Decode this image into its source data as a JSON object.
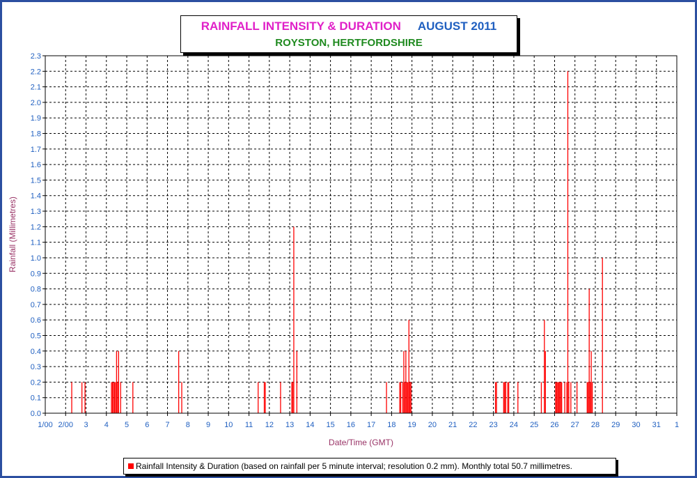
{
  "header": {
    "title_main": "RAINFALL INTENSITY & DURATION",
    "title_period": "AUGUST 2011",
    "subtitle": "ROYSTON, HERTFORDSHIRE"
  },
  "legend": {
    "label": "Rainfall Intensity & Duration (based on rainfall per 5 minute interval; resolution 0.2 mm). Monthly total 50.7 millimetres."
  },
  "colors": {
    "bar": "#ff0000",
    "axis_text": "#1f5fc0",
    "axis_title": "#993366",
    "grid": "#000000"
  },
  "chart_data": {
    "type": "bar",
    "title": "RAINFALL INTENSITY & DURATION AUGUST 2011",
    "xlabel": "Date/Time (GMT)",
    "ylabel": "Rainfall (Millimetres)",
    "xlim": [
      0,
      31
    ],
    "ylim": [
      0,
      2.3
    ],
    "grid": true,
    "legend_position": "bottom",
    "x_tick_labels": [
      "1/00",
      "2/00",
      "3",
      "4",
      "5",
      "6",
      "7",
      "8",
      "9",
      "10",
      "11",
      "12",
      "13",
      "14",
      "15",
      "16",
      "17",
      "18",
      "19",
      "20",
      "21",
      "22",
      "23",
      "24",
      "25",
      "26",
      "27",
      "28",
      "29",
      "30",
      "31",
      "1"
    ],
    "y_tick_labels": [
      "0.0",
      "0.1",
      "0.2",
      "0.3",
      "0.4",
      "0.5",
      "0.6",
      "0.7",
      "0.8",
      "0.9",
      "1.0",
      "1.1",
      "1.2",
      "1.3",
      "1.4",
      "1.5",
      "1.6",
      "1.7",
      "1.8",
      "1.9",
      "2.0",
      "2.1",
      "2.2",
      "2.3"
    ],
    "series": [
      {
        "name": "Rainfall Intensity & Duration",
        "points": [
          [
            1.3,
            0.2
          ],
          [
            1.8,
            0.2
          ],
          [
            1.95,
            0.2
          ],
          [
            3.25,
            0.2
          ],
          [
            3.3,
            0.2
          ],
          [
            3.35,
            0.2
          ],
          [
            3.4,
            0.2
          ],
          [
            3.45,
            0.2
          ],
          [
            3.5,
            0.4
          ],
          [
            3.55,
            0.2
          ],
          [
            3.6,
            0.4
          ],
          [
            3.7,
            0.2
          ],
          [
            4.3,
            0.2
          ],
          [
            6.55,
            0.4
          ],
          [
            6.7,
            0.2
          ],
          [
            10.45,
            0.2
          ],
          [
            10.75,
            0.2
          ],
          [
            10.8,
            0.2
          ],
          [
            11.55,
            0.2
          ],
          [
            12.1,
            0.2
          ],
          [
            12.15,
            0.2
          ],
          [
            12.2,
            1.2
          ],
          [
            12.35,
            0.4
          ],
          [
            16.75,
            0.2
          ],
          [
            17.4,
            0.2
          ],
          [
            17.45,
            0.2
          ],
          [
            17.55,
            0.2
          ],
          [
            17.6,
            0.4
          ],
          [
            17.65,
            0.2
          ],
          [
            17.7,
            0.4
          ],
          [
            17.75,
            0.2
          ],
          [
            17.8,
            0.2
          ],
          [
            17.85,
            0.6
          ],
          [
            17.9,
            0.2
          ],
          [
            17.95,
            0.2
          ],
          [
            22.1,
            0.2
          ],
          [
            22.15,
            0.2
          ],
          [
            22.5,
            0.2
          ],
          [
            22.55,
            0.2
          ],
          [
            22.6,
            0.2
          ],
          [
            22.7,
            0.2
          ],
          [
            22.75,
            0.2
          ],
          [
            23.2,
            0.2
          ],
          [
            24.35,
            0.2
          ],
          [
            24.5,
            0.6
          ],
          [
            24.55,
            0.4
          ],
          [
            25.05,
            0.2
          ],
          [
            25.1,
            0.2
          ],
          [
            25.15,
            0.2
          ],
          [
            25.2,
            0.2
          ],
          [
            25.25,
            0.2
          ],
          [
            25.3,
            0.2
          ],
          [
            25.35,
            0.2
          ],
          [
            25.5,
            0.2
          ],
          [
            25.6,
            0.2
          ],
          [
            25.65,
            2.2
          ],
          [
            25.7,
            0.2
          ],
          [
            25.8,
            0.2
          ],
          [
            26.1,
            0.2
          ],
          [
            26.6,
            0.2
          ],
          [
            26.65,
            0.2
          ],
          [
            26.7,
            0.8
          ],
          [
            26.75,
            0.2
          ],
          [
            26.8,
            0.4
          ],
          [
            26.85,
            0.2
          ],
          [
            27.35,
            1.0
          ]
        ]
      }
    ]
  }
}
